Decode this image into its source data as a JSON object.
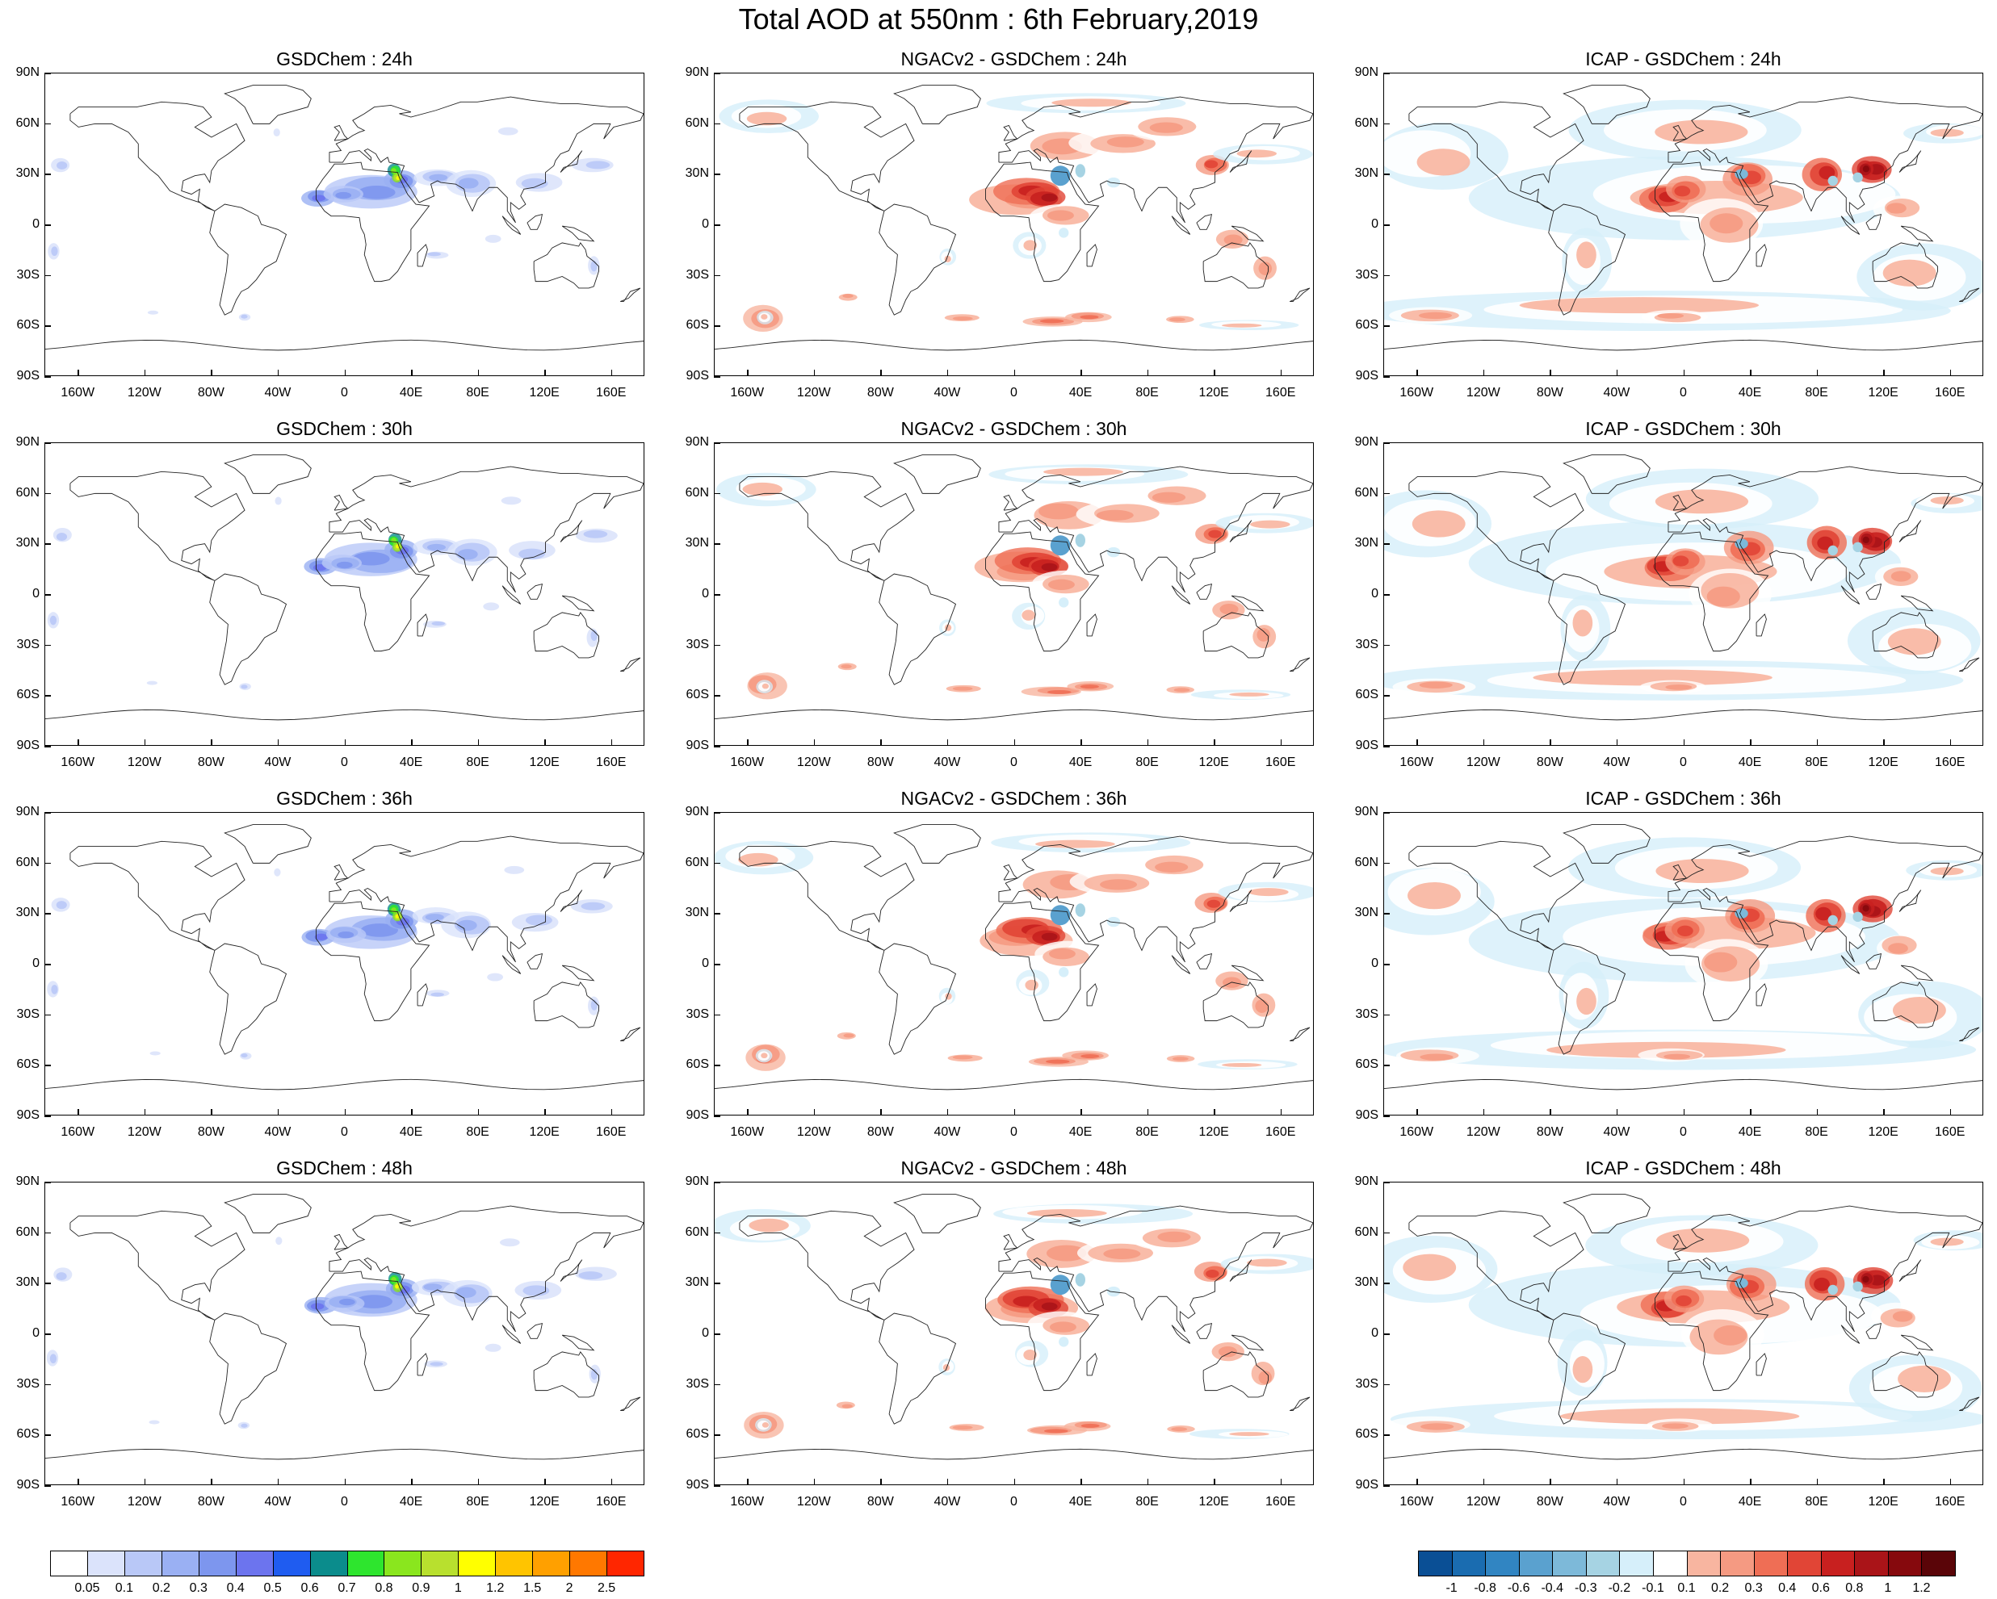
{
  "title": "Total AOD at 550nm : 6th February,2019",
  "lat_labels": [
    "90N",
    "60N",
    "30N",
    "0",
    "30S",
    "60S",
    "90S"
  ],
  "lon_labels": [
    "160W",
    "120W",
    "80W",
    "40W",
    "0",
    "40E",
    "80E",
    "120E",
    "160E"
  ],
  "rows": [
    {
      "panels": [
        {
          "title": "GSDChem : 24h",
          "kind": "gsd"
        },
        {
          "title": "NGACv2 - GSDChem : 24h",
          "kind": "diff"
        },
        {
          "title": "ICAP - GSDChem : 24h",
          "kind": "diff2"
        }
      ]
    },
    {
      "panels": [
        {
          "title": "GSDChem : 30h",
          "kind": "gsd"
        },
        {
          "title": "NGACv2 - GSDChem : 30h",
          "kind": "diff"
        },
        {
          "title": "ICAP - GSDChem : 30h",
          "kind": "diff2"
        }
      ]
    },
    {
      "panels": [
        {
          "title": "GSDChem : 36h",
          "kind": "gsd"
        },
        {
          "title": "NGACv2 - GSDChem : 36h",
          "kind": "diff"
        },
        {
          "title": "ICAP - GSDChem : 36h",
          "kind": "diff2"
        }
      ]
    },
    {
      "panels": [
        {
          "title": "GSDChem : 48h",
          "kind": "gsd"
        },
        {
          "title": "NGACv2 - GSDChem : 48h",
          "kind": "diff"
        },
        {
          "title": "ICAP - GSDChem : 48h",
          "kind": "diff2"
        }
      ]
    }
  ],
  "colorbar_aod": {
    "labels": [
      "0.05",
      "0.1",
      "0.2",
      "0.3",
      "0.4",
      "0.5",
      "0.6",
      "0.7",
      "0.8",
      "0.9",
      "1",
      "1.2",
      "1.5",
      "2",
      "2.5"
    ],
    "colors": [
      "#ffffff",
      "#dbe3fb",
      "#b9c8f7",
      "#9ab0f3",
      "#7d96ee",
      "#6c74ee",
      "#1f5cf0",
      "#0b8c8c",
      "#2ee52e",
      "#8ae61e",
      "#b8e02e",
      "#ffff00",
      "#ffc400",
      "#ffa000",
      "#ff7800",
      "#ff2600"
    ]
  },
  "colorbar_diff": {
    "labels": [
      "-1",
      "-0.8",
      "-0.6",
      "-0.4",
      "-0.3",
      "-0.2",
      "-0.1",
      "0.1",
      "0.2",
      "0.3",
      "0.4",
      "0.6",
      "0.8",
      "1",
      "1.2"
    ],
    "colors": [
      "#0a4f95",
      "#1a6cb0",
      "#3185c2",
      "#5aa1cf",
      "#7db9d9",
      "#a6d3e3",
      "#d6effa",
      "#ffffff",
      "#f8b5a0",
      "#f59a82",
      "#ef6e55",
      "#e14536",
      "#c8201f",
      "#aa1418",
      "#86090d",
      "#5a0508"
    ]
  }
}
